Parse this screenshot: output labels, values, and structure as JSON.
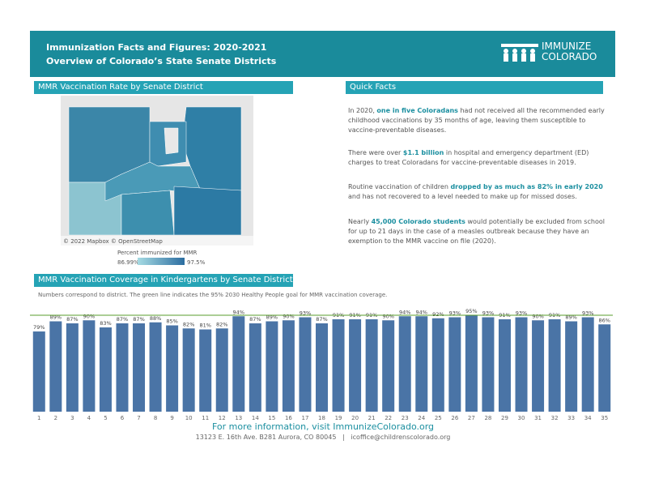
{
  "header": {
    "title_line1": "Immunization Facts and Figures: 2020-2021",
    "title_line2": "Overview of Colorado’s State Senate Districts",
    "logo_line1": "IMMUNIZE",
    "logo_line2": "COLORADO"
  },
  "map_section": {
    "heading": "MMR Vaccination Rate by Senate District",
    "attribution": "© 2022 Mapbox © OpenStreetMap",
    "legend_title": "Percent immunized for MMR",
    "legend_min": "86.99%",
    "legend_max": "97.5%"
  },
  "quick_facts": {
    "heading": "Quick Facts",
    "paragraphs": [
      [
        {
          "text": "In 2020, "
        },
        {
          "text": "one in five Coloradans",
          "highlight": true
        },
        {
          "text": " had not received all the recommended early childhood vaccinations by 35 months of age, leaving them susceptible to vaccine-preventable diseases."
        }
      ],
      [
        {
          "text": "There were over "
        },
        {
          "text": "$1.1 billion",
          "highlight": true
        },
        {
          "text": " in hospital and emergency department (ED) charges to treat Coloradans for vaccine-preventable diseases in 2019."
        }
      ],
      [
        {
          "text": "Routine vaccination of children "
        },
        {
          "text": "dropped by as much as 82% in early 2020",
          "highlight": true
        },
        {
          "text": " and has not recovered to a level needed to make up for missed doses."
        }
      ],
      [
        {
          "text": "Nearly "
        },
        {
          "text": "45,000 Colorado students",
          "highlight": true
        },
        {
          "text": " would potentially be excluded from school for up to 21 days in the case of a measles outbreak because they have an exemption to the MMR vaccine on file (2020)."
        }
      ]
    ]
  },
  "chart_data": {
    "type": "bar",
    "title": "MMR Vaccination Coverage in Kindergartens by Senate District",
    "subtitle": "Numbers correspond to district. The green line indicates the 95% 2030 Healthy People goal for MMR vaccination coverage.",
    "categories": [
      "1",
      "2",
      "3",
      "4",
      "5",
      "6",
      "7",
      "8",
      "9",
      "10",
      "11",
      "12",
      "13",
      "14",
      "15",
      "16",
      "17",
      "18",
      "19",
      "20",
      "21",
      "22",
      "23",
      "24",
      "25",
      "26",
      "27",
      "28",
      "29",
      "30",
      "31",
      "32",
      "33",
      "34",
      "35"
    ],
    "values": [
      79,
      89,
      87,
      90,
      83,
      87,
      87,
      88,
      85,
      82,
      81,
      82,
      94,
      87,
      89,
      90,
      93,
      87,
      91,
      91,
      91,
      90,
      94,
      94,
      92,
      93,
      95,
      93,
      91,
      93,
      90,
      91,
      89,
      93,
      86
    ],
    "value_labels": [
      "79%",
      "89%",
      "87%",
      "90%",
      "83%",
      "87%",
      "87%",
      "88%",
      "85%",
      "82%",
      "81%",
      "82%",
      "94%",
      "87%",
      "89%",
      "90%",
      "93%",
      "87%",
      "91%",
      "91%",
      "91%",
      "90%",
      "94%",
      "94%",
      "92%",
      "93%",
      "95%",
      "93%",
      "91%",
      "93%",
      "90%",
      "91%",
      "89%",
      "93%",
      "86%"
    ],
    "color": "#4a74a6",
    "goal": 95,
    "goal_color": "#5a9e2c"
  },
  "footer": {
    "more_info": "For more information, visit ImmunizeColorado.org",
    "address": "13123 E. 16th Ave. B281 Aurora, CO 80045",
    "separator": "|",
    "email": "icoffice@childrenscolorado.org"
  }
}
